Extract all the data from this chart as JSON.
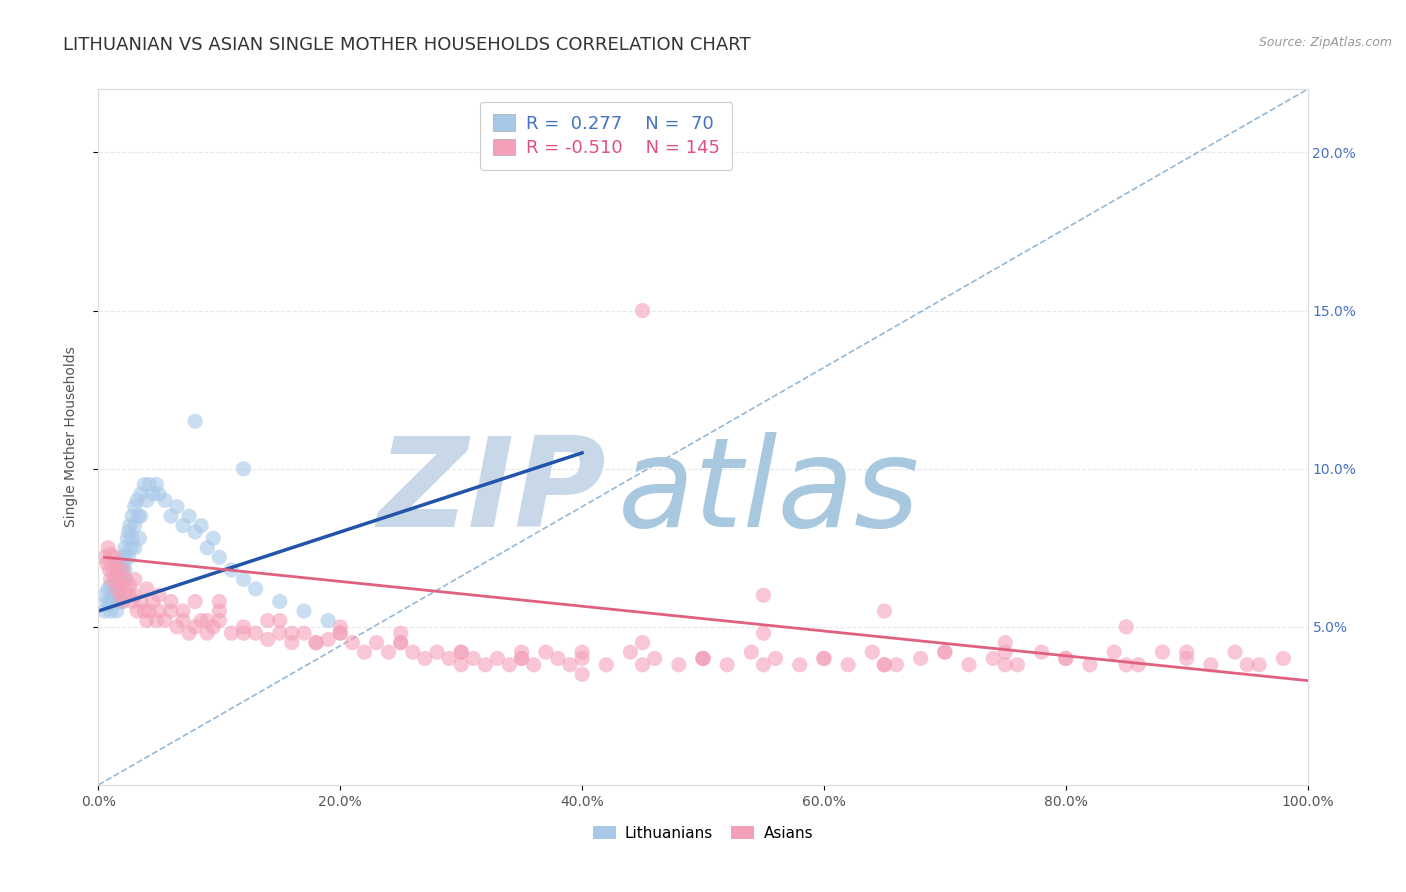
{
  "title": "LITHUANIAN VS ASIAN SINGLE MOTHER HOUSEHOLDS CORRELATION CHART",
  "source_text": "Source: ZipAtlas.com",
  "ylabel": "Single Mother Households",
  "xlim": [
    0,
    1.0
  ],
  "ylim": [
    0,
    0.22
  ],
  "xticklabels": [
    "0.0%",
    "20.0%",
    "40.0%",
    "60.0%",
    "80.0%",
    "100.0%"
  ],
  "ytick_labels_right": [
    "5.0%",
    "10.0%",
    "15.0%",
    "20.0%"
  ],
  "legend_r1": "R =  0.277",
  "legend_n1": "N =  70",
  "legend_r2": "R = -0.510",
  "legend_n2": "N = 145",
  "color_blue": "#A8C8E8",
  "color_pink": "#F4A0B8",
  "color_blue_text": "#4472C4",
  "color_pink_text": "#E05080",
  "color_trend_blue": "#2255AA",
  "color_trend_pink": "#E06080",
  "color_ref_line": "#8AB0D0",
  "watermark_zip": "ZIP",
  "watermark_atlas": "atlas",
  "watermark_color_zip": "#C8D8E8",
  "watermark_color_atlas": "#A8C8E0",
  "background_color": "#FFFFFF",
  "grid_color": "#E8E8E8",
  "title_fontsize": 13,
  "axis_label_fontsize": 10,
  "tick_fontsize": 10,
  "legend_fontsize": 13,
  "blue_scatter_x": [
    0.005,
    0.005,
    0.007,
    0.008,
    0.009,
    0.01,
    0.01,
    0.01,
    0.012,
    0.012,
    0.013,
    0.013,
    0.014,
    0.015,
    0.015,
    0.015,
    0.016,
    0.016,
    0.017,
    0.017,
    0.018,
    0.018,
    0.019,
    0.02,
    0.02,
    0.02,
    0.021,
    0.022,
    0.022,
    0.023,
    0.023,
    0.024,
    0.025,
    0.025,
    0.026,
    0.027,
    0.028,
    0.028,
    0.03,
    0.03,
    0.03,
    0.032,
    0.033,
    0.034,
    0.035,
    0.035,
    0.038,
    0.04,
    0.042,
    0.045,
    0.048,
    0.05,
    0.055,
    0.06,
    0.065,
    0.07,
    0.075,
    0.08,
    0.085,
    0.09,
    0.095,
    0.1,
    0.11,
    0.12,
    0.13,
    0.15,
    0.17,
    0.19,
    0.12,
    0.08
  ],
  "blue_scatter_y": [
    0.055,
    0.06,
    0.058,
    0.062,
    0.057,
    0.063,
    0.058,
    0.055,
    0.06,
    0.058,
    0.065,
    0.062,
    0.059,
    0.065,
    0.06,
    0.055,
    0.068,
    0.063,
    0.058,
    0.07,
    0.065,
    0.06,
    0.068,
    0.072,
    0.065,
    0.058,
    0.07,
    0.075,
    0.068,
    0.073,
    0.065,
    0.078,
    0.08,
    0.072,
    0.082,
    0.075,
    0.085,
    0.078,
    0.088,
    0.082,
    0.075,
    0.09,
    0.085,
    0.078,
    0.092,
    0.085,
    0.095,
    0.09,
    0.095,
    0.092,
    0.095,
    0.092,
    0.09,
    0.085,
    0.088,
    0.082,
    0.085,
    0.08,
    0.082,
    0.075,
    0.078,
    0.072,
    0.068,
    0.065,
    0.062,
    0.058,
    0.055,
    0.052,
    0.1,
    0.115
  ],
  "blue_trend_x": [
    0.0,
    0.4
  ],
  "blue_trend_y": [
    0.055,
    0.105
  ],
  "pink_scatter_x": [
    0.005,
    0.007,
    0.008,
    0.009,
    0.01,
    0.01,
    0.012,
    0.013,
    0.014,
    0.015,
    0.015,
    0.016,
    0.017,
    0.018,
    0.019,
    0.02,
    0.02,
    0.022,
    0.023,
    0.025,
    0.026,
    0.028,
    0.03,
    0.032,
    0.035,
    0.038,
    0.04,
    0.042,
    0.045,
    0.048,
    0.05,
    0.055,
    0.06,
    0.065,
    0.07,
    0.075,
    0.08,
    0.085,
    0.09,
    0.095,
    0.1,
    0.11,
    0.12,
    0.13,
    0.14,
    0.15,
    0.16,
    0.17,
    0.18,
    0.19,
    0.2,
    0.21,
    0.22,
    0.23,
    0.24,
    0.25,
    0.26,
    0.27,
    0.28,
    0.29,
    0.3,
    0.31,
    0.32,
    0.33,
    0.34,
    0.35,
    0.36,
    0.37,
    0.38,
    0.39,
    0.4,
    0.42,
    0.44,
    0.46,
    0.48,
    0.5,
    0.52,
    0.54,
    0.56,
    0.58,
    0.6,
    0.62,
    0.64,
    0.66,
    0.68,
    0.7,
    0.72,
    0.74,
    0.76,
    0.78,
    0.8,
    0.82,
    0.84,
    0.86,
    0.88,
    0.9,
    0.92,
    0.94,
    0.96,
    0.98,
    0.03,
    0.04,
    0.05,
    0.06,
    0.07,
    0.08,
    0.09,
    0.1,
    0.12,
    0.14,
    0.16,
    0.18,
    0.2,
    0.25,
    0.3,
    0.35,
    0.4,
    0.45,
    0.5,
    0.55,
    0.6,
    0.65,
    0.7,
    0.75,
    0.8,
    0.85,
    0.9,
    0.95,
    0.85,
    0.75,
    0.55,
    0.45,
    0.35,
    0.25,
    0.15,
    0.75,
    0.65,
    0.5,
    0.4,
    0.3,
    0.2,
    0.1,
    0.45,
    0.55,
    0.65
  ],
  "pink_scatter_y": [
    0.072,
    0.07,
    0.075,
    0.068,
    0.073,
    0.065,
    0.068,
    0.072,
    0.065,
    0.07,
    0.062,
    0.068,
    0.065,
    0.06,
    0.063,
    0.068,
    0.058,
    0.065,
    0.062,
    0.06,
    0.063,
    0.058,
    0.06,
    0.055,
    0.058,
    0.055,
    0.052,
    0.055,
    0.058,
    0.052,
    0.055,
    0.052,
    0.055,
    0.05,
    0.052,
    0.048,
    0.05,
    0.052,
    0.048,
    0.05,
    0.052,
    0.048,
    0.05,
    0.048,
    0.046,
    0.048,
    0.045,
    0.048,
    0.045,
    0.046,
    0.048,
    0.045,
    0.042,
    0.045,
    0.042,
    0.045,
    0.042,
    0.04,
    0.042,
    0.04,
    0.042,
    0.04,
    0.038,
    0.04,
    0.038,
    0.04,
    0.038,
    0.042,
    0.04,
    0.038,
    0.04,
    0.038,
    0.042,
    0.04,
    0.038,
    0.04,
    0.038,
    0.042,
    0.04,
    0.038,
    0.04,
    0.038,
    0.042,
    0.038,
    0.04,
    0.042,
    0.038,
    0.04,
    0.038,
    0.042,
    0.04,
    0.038,
    0.042,
    0.038,
    0.042,
    0.04,
    0.038,
    0.042,
    0.038,
    0.04,
    0.065,
    0.062,
    0.06,
    0.058,
    0.055,
    0.058,
    0.052,
    0.055,
    0.048,
    0.052,
    0.048,
    0.045,
    0.048,
    0.045,
    0.042,
    0.04,
    0.042,
    0.038,
    0.04,
    0.038,
    0.04,
    0.038,
    0.042,
    0.038,
    0.04,
    0.038,
    0.042,
    0.038,
    0.05,
    0.045,
    0.048,
    0.045,
    0.042,
    0.048,
    0.052,
    0.042,
    0.038,
    0.04,
    0.035,
    0.038,
    0.05,
    0.058,
    0.15,
    0.06,
    0.055
  ],
  "pink_trend_x": [
    0.005,
    1.0
  ],
  "pink_trend_y": [
    0.072,
    0.033
  ],
  "ref_line_x": [
    0.0,
    1.0
  ],
  "ref_line_y": [
    0.0,
    0.22
  ]
}
